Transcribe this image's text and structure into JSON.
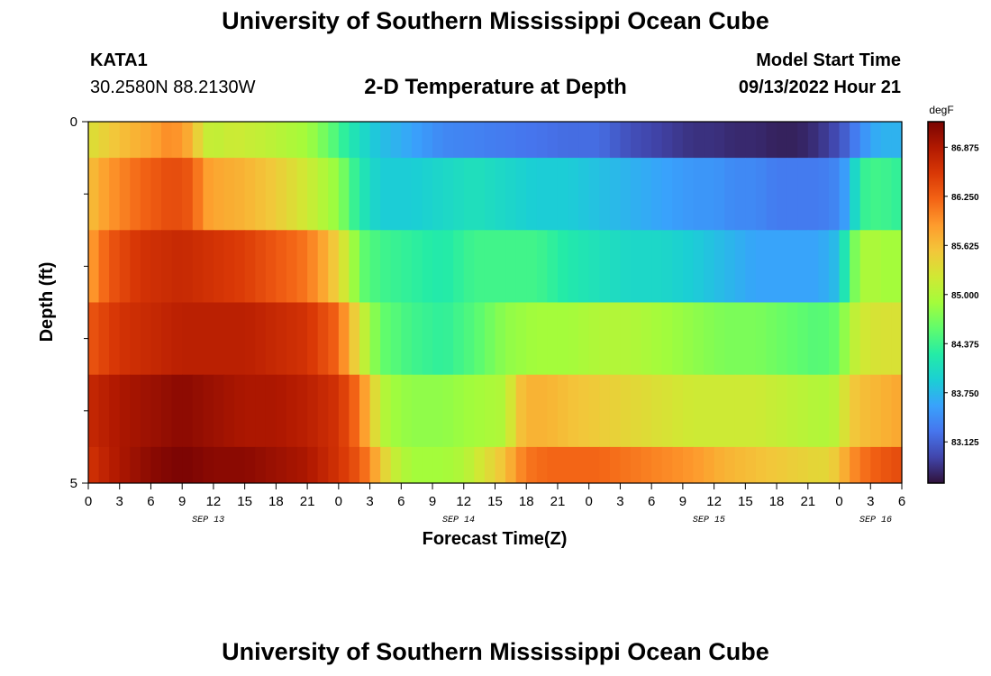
{
  "header": {
    "title": "University of Southern Mississippi Ocean Cube",
    "station_id": "KATA1",
    "coordinates": "30.2580N  88.2130W",
    "plot_title": "2-D Temperature at Depth",
    "model_start_label": "Model Start Time",
    "model_start_value": "09/13/2022 Hour 21"
  },
  "footer": {
    "title": "University of Southern Mississippi Ocean Cube"
  },
  "colors": {
    "colormap": [
      "#30123b",
      "#4145ab",
      "#4675ed",
      "#39a2fc",
      "#1bcfd4",
      "#24eca6",
      "#61fc6c",
      "#a4fc3b",
      "#d1e834",
      "#f3c63a",
      "#fe9b2d",
      "#f36315",
      "#d93806",
      "#b11901",
      "#7a0403"
    ]
  },
  "chart_data": {
    "type": "heatmap",
    "xlabel": "Forecast Time(Z)",
    "ylabel": "Depth (ft)",
    "units": "degF",
    "x_range_hours": [
      0,
      78
    ],
    "x_tick_labels": [
      "0",
      "3",
      "6",
      "9",
      "12",
      "15",
      "18",
      "21",
      "0",
      "3",
      "6",
      "9",
      "12",
      "15",
      "18",
      "21",
      "0",
      "3",
      "6",
      "9",
      "12",
      "15",
      "18",
      "21",
      "0",
      "3",
      "6"
    ],
    "date_labels": [
      {
        "text": "SEP 13",
        "hour": 11.5
      },
      {
        "text": "SEP 14",
        "hour": 35.5
      },
      {
        "text": "SEP 15",
        "hour": 59.5
      },
      {
        "text": "SEP 16",
        "hour": 75.5
      }
    ],
    "y_range": [
      0,
      5
    ],
    "y_tick_labels": [
      "0",
      "5"
    ],
    "y_minor_ticks": [
      1,
      2,
      3,
      4
    ],
    "colorbar": {
      "min": 82.6,
      "max": 87.2,
      "labels": [
        "86.875",
        "86.250",
        "85.625",
        "85.000",
        "84.375",
        "83.750",
        "83.125"
      ],
      "values": [
        86.875,
        86.25,
        85.625,
        85.0,
        84.375,
        83.75,
        83.125
      ]
    },
    "layers": [
      {
        "name": "layer-1",
        "depth_range": [
          0.0,
          0.5
        ],
        "hours": [
          0,
          3,
          6,
          8,
          10,
          11,
          12,
          14,
          17,
          19,
          21,
          23,
          25,
          28,
          31,
          34,
          37,
          40,
          43,
          46,
          49,
          52,
          55,
          58,
          60,
          62,
          64,
          66,
          68,
          70,
          72,
          74,
          75,
          76,
          78
        ],
        "values": [
          85.3,
          85.6,
          85.8,
          86.0,
          85.7,
          85.2,
          85.1,
          85.2,
          85.1,
          85.0,
          84.9,
          84.6,
          84.2,
          83.8,
          83.6,
          83.4,
          83.35,
          83.3,
          83.25,
          83.2,
          83.2,
          83.0,
          82.9,
          82.8,
          82.8,
          82.75,
          82.75,
          82.7,
          82.7,
          82.8,
          83.0,
          83.4,
          83.6,
          83.7,
          83.7
        ]
      },
      {
        "name": "layer-2",
        "depth_range": [
          0.5,
          1.5
        ],
        "hours": [
          0,
          2,
          5,
          8,
          10,
          11,
          12,
          15,
          18,
          21,
          24,
          26,
          28,
          31,
          34,
          37,
          40,
          43,
          46,
          49,
          52,
          55,
          58,
          60,
          62,
          64,
          66,
          68,
          70,
          72,
          73,
          74,
          75,
          76,
          78
        ],
        "values": [
          85.6,
          85.9,
          86.2,
          86.4,
          86.3,
          85.9,
          85.8,
          85.7,
          85.5,
          85.2,
          84.8,
          84.2,
          83.9,
          83.9,
          84.0,
          84.1,
          84.0,
          83.9,
          83.9,
          83.8,
          83.7,
          83.6,
          83.5,
          83.5,
          83.4,
          83.4,
          83.3,
          83.3,
          83.3,
          83.4,
          83.7,
          84.3,
          84.4,
          84.4,
          84.3
        ]
      },
      {
        "name": "layer-3",
        "depth_range": [
          1.5,
          2.5
        ],
        "hours": [
          0,
          2,
          5,
          9,
          12,
          15,
          18,
          21,
          23,
          25,
          26,
          28,
          31,
          34,
          37,
          40,
          43,
          46,
          49,
          52,
          55,
          58,
          60,
          62,
          64,
          66,
          68,
          70,
          72,
          73,
          74,
          75,
          76,
          78
        ],
        "values": [
          85.8,
          86.3,
          86.6,
          86.7,
          86.6,
          86.5,
          86.3,
          86.1,
          85.7,
          85.1,
          84.6,
          84.4,
          84.3,
          84.2,
          84.4,
          84.4,
          84.4,
          84.2,
          84.1,
          84.0,
          84.0,
          83.9,
          83.8,
          83.7,
          83.6,
          83.6,
          83.6,
          83.6,
          83.8,
          84.5,
          84.9,
          85.0,
          84.9,
          84.9
        ]
      },
      {
        "name": "layer-4",
        "depth_range": [
          2.5,
          3.5
        ],
        "hours": [
          0,
          3,
          6,
          9,
          12,
          15,
          18,
          21,
          24,
          25,
          26,
          27,
          28,
          31,
          34,
          37,
          40,
          43,
          46,
          49,
          52,
          55,
          58,
          61,
          64,
          67,
          70,
          72,
          73,
          74,
          76,
          78
        ],
        "values": [
          86.3,
          86.6,
          86.7,
          86.8,
          86.8,
          86.8,
          86.7,
          86.6,
          86.2,
          85.7,
          85.3,
          84.9,
          84.6,
          84.4,
          84.3,
          84.5,
          84.8,
          84.9,
          84.9,
          85.0,
          85.0,
          84.9,
          84.8,
          84.7,
          84.7,
          84.6,
          84.5,
          84.6,
          85.0,
          85.2,
          85.3,
          85.3
        ]
      },
      {
        "name": "layer-5",
        "depth_range": [
          3.5,
          4.5
        ],
        "hours": [
          0,
          3,
          6,
          9,
          12,
          15,
          18,
          21,
          24,
          26,
          27,
          28,
          29,
          31,
          34,
          37,
          40,
          41,
          42,
          44,
          46,
          49,
          52,
          55,
          58,
          61,
          64,
          67,
          70,
          71,
          72,
          73,
          74,
          76,
          78
        ],
        "values": [
          86.7,
          86.9,
          87.0,
          87.1,
          87.0,
          86.9,
          86.9,
          86.8,
          86.6,
          86.1,
          85.6,
          85.1,
          84.9,
          84.8,
          84.8,
          84.9,
          85.0,
          85.5,
          85.7,
          85.7,
          85.6,
          85.5,
          85.4,
          85.3,
          85.2,
          85.2,
          85.2,
          85.1,
          85.0,
          85.0,
          85.1,
          85.5,
          85.6,
          85.7,
          85.8
        ]
      },
      {
        "name": "layer-6",
        "depth_range": [
          4.5,
          5.0
        ],
        "hours": [
          0,
          3,
          6,
          9,
          12,
          15,
          18,
          21,
          24,
          26,
          27,
          28,
          29,
          31,
          34,
          36,
          38,
          40,
          41,
          42,
          44,
          46,
          49,
          52,
          55,
          58,
          61,
          64,
          67,
          70,
          71,
          72,
          73,
          74,
          76,
          78
        ],
        "values": [
          86.6,
          86.9,
          87.1,
          87.2,
          87.1,
          87.1,
          87.0,
          86.9,
          86.6,
          86.3,
          86.0,
          85.6,
          85.2,
          84.9,
          84.9,
          85.0,
          85.3,
          85.6,
          85.9,
          86.1,
          86.2,
          86.2,
          86.2,
          86.1,
          86.0,
          85.9,
          85.7,
          85.6,
          85.5,
          85.4,
          85.4,
          85.6,
          85.9,
          86.1,
          86.3,
          86.4
        ]
      }
    ]
  }
}
